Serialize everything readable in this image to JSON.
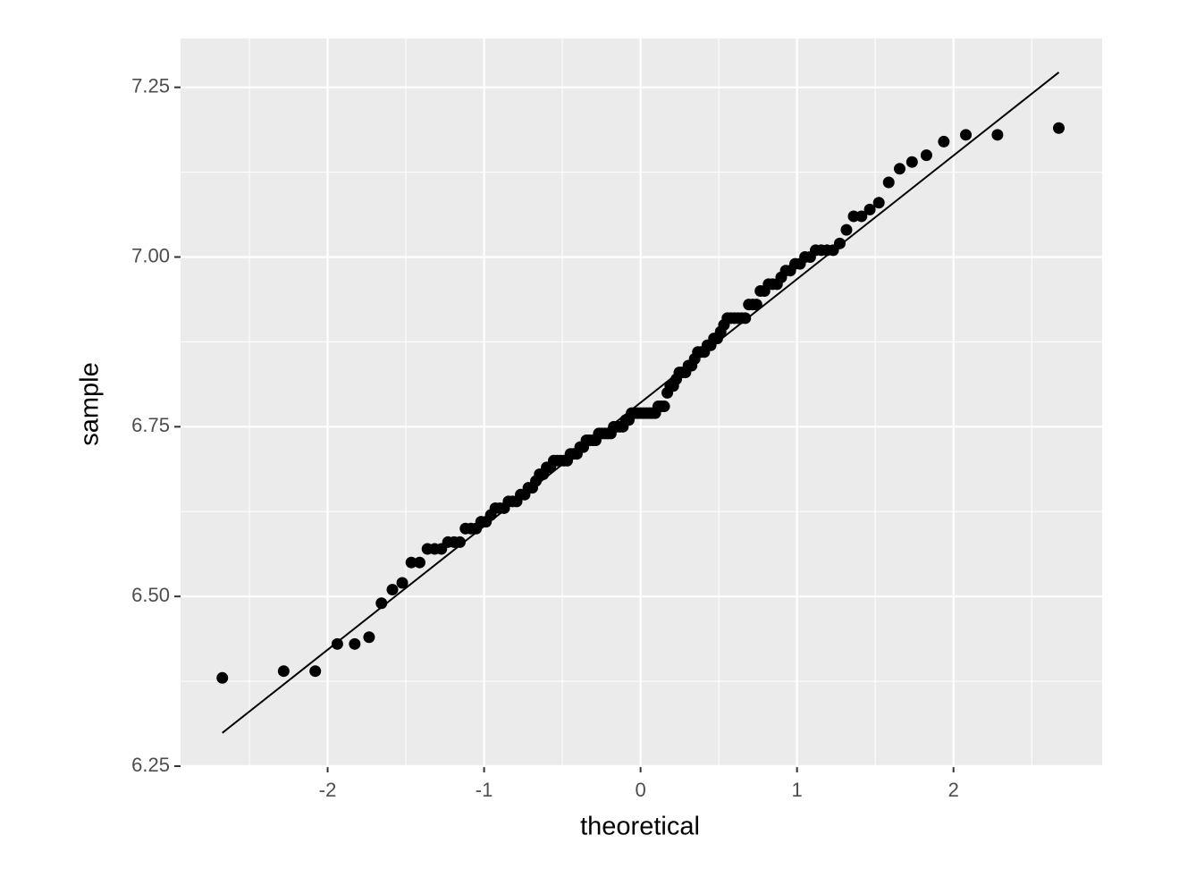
{
  "chart_data": {
    "type": "scatter",
    "xlabel": "theoretical",
    "ylabel": "sample",
    "color": "#000000",
    "grid": true,
    "xlim": [
      -2.94,
      2.95
    ],
    "ylim": [
      6.25,
      7.322
    ],
    "xticks": [
      -2,
      -1,
      0,
      1,
      2
    ],
    "yticks": [
      6.25,
      {
        "value": 6.5,
        "label": "6.50"
      },
      6.75,
      {
        "value": 7,
        "label": "7.00"
      },
      7.25
    ],
    "x": [
      -2.673,
      -2.281,
      -2.079,
      -1.938,
      -1.827,
      -1.735,
      -1.656,
      -1.586,
      -1.523,
      -1.465,
      -1.412,
      -1.362,
      -1.316,
      -1.273,
      -1.231,
      -1.192,
      -1.155,
      -1.119,
      -1.084,
      -1.051,
      -1.019,
      -0.988,
      -0.957,
      -0.928,
      -0.899,
      -0.872,
      -0.844,
      -0.818,
      -0.792,
      -0.766,
      -0.741,
      -0.717,
      -0.692,
      -0.669,
      -0.645,
      -0.622,
      -0.6,
      -0.577,
      -0.555,
      -0.533,
      -0.512,
      -0.49,
      -0.469,
      -0.448,
      -0.427,
      -0.407,
      -0.386,
      -0.366,
      -0.346,
      -0.326,
      -0.306,
      -0.287,
      -0.267,
      -0.248,
      -0.228,
      -0.209,
      -0.19,
      -0.171,
      -0.151,
      -0.132,
      -0.113,
      -0.094,
      -0.075,
      -0.057,
      -0.038,
      -0.019,
      0,
      0.019,
      0.038,
      0.057,
      0.075,
      0.094,
      0.113,
      0.132,
      0.151,
      0.171,
      0.19,
      0.209,
      0.228,
      0.248,
      0.267,
      0.287,
      0.306,
      0.326,
      0.346,
      0.366,
      0.386,
      0.407,
      0.427,
      0.448,
      0.469,
      0.49,
      0.512,
      0.533,
      0.555,
      0.577,
      0.6,
      0.622,
      0.645,
      0.669,
      0.692,
      0.717,
      0.741,
      0.766,
      0.792,
      0.818,
      0.844,
      0.872,
      0.899,
      0.928,
      0.957,
      0.988,
      1.019,
      1.051,
      1.084,
      1.119,
      1.155,
      1.192,
      1.231,
      1.273,
      1.316,
      1.362,
      1.412,
      1.465,
      1.523,
      1.586,
      1.656,
      1.735,
      1.827,
      1.938,
      2.079,
      2.281,
      2.673
    ],
    "values": [
      6.38,
      6.39,
      6.39,
      6.43,
      6.43,
      6.44,
      6.49,
      6.51,
      6.52,
      6.55,
      6.55,
      6.57,
      6.57,
      6.57,
      6.58,
      6.58,
      6.58,
      6.6,
      6.6,
      6.6,
      6.61,
      6.61,
      6.62,
      6.63,
      6.63,
      6.63,
      6.64,
      6.64,
      6.64,
      6.65,
      6.65,
      6.66,
      6.66,
      6.67,
      6.68,
      6.68,
      6.69,
      6.69,
      6.7,
      6.7,
      6.7,
      6.7,
      6.7,
      6.71,
      6.71,
      6.71,
      6.72,
      6.72,
      6.73,
      6.73,
      6.73,
      6.73,
      6.74,
      6.74,
      6.74,
      6.74,
      6.74,
      6.75,
      6.75,
      6.75,
      6.75,
      6.76,
      6.76,
      6.77,
      6.77,
      6.77,
      6.77,
      6.77,
      6.77,
      6.77,
      6.77,
      6.77,
      6.78,
      6.78,
      6.78,
      6.8,
      6.81,
      6.81,
      6.82,
      6.83,
      6.83,
      6.83,
      6.84,
      6.84,
      6.85,
      6.86,
      6.86,
      6.86,
      6.87,
      6.87,
      6.88,
      6.88,
      6.89,
      6.9,
      6.91,
      6.91,
      6.91,
      6.91,
      6.91,
      6.91,
      6.93,
      6.93,
      6.93,
      6.95,
      6.95,
      6.96,
      6.96,
      6.96,
      6.97,
      6.98,
      6.98,
      6.99,
      6.99,
      7.0,
      7.0,
      7.01,
      7.01,
      7.01,
      7.01,
      7.02,
      7.04,
      7.06,
      7.06,
      7.07,
      7.08,
      7.11,
      7.13,
      7.14,
      7.15,
      7.17,
      7.18,
      7.18,
      7.19
    ],
    "reference_line": {
      "x": [
        -2.673,
        2.673
      ],
      "y": [
        6.299,
        7.272
      ]
    }
  }
}
